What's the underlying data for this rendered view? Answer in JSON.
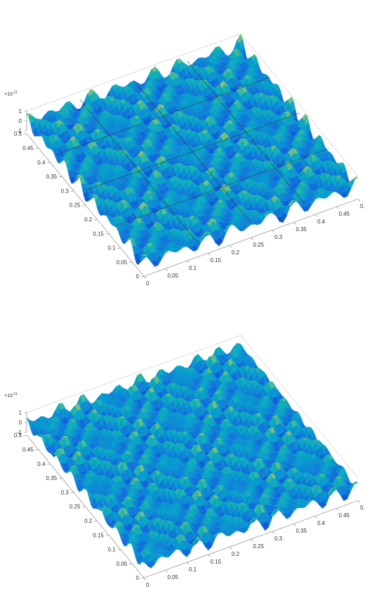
{
  "chart_data": [
    {
      "type": "surface",
      "title": "",
      "xlabel": "",
      "ylabel": "",
      "zlabel": "",
      "x_ticks": [
        "0",
        "0.05",
        "0.1",
        "0.15",
        "0.2",
        "0.25",
        "0.3",
        "0.35",
        "0.4",
        "0.45",
        "0.5"
      ],
      "y_ticks": [
        "0",
        "0.05",
        "0.1",
        "0.15",
        "0.2",
        "0.25",
        "0.3",
        "0.35",
        "0.4",
        "0.45",
        "0.5"
      ],
      "z_ticks": [
        "-1",
        "0",
        "1"
      ],
      "z_exponent": "×10",
      "z_exponent_power": "-11",
      "xlim": [
        0,
        0.5
      ],
      "ylim": [
        0,
        0.5
      ],
      "zlim": [
        -1e-11,
        1e-11
      ],
      "colormap": "parula",
      "overlay_grid_lines": 4,
      "pattern_kx": [
        10,
        9
      ],
      "pattern_phase": 0.0
    },
    {
      "type": "surface",
      "title": "",
      "xlabel": "",
      "ylabel": "",
      "zlabel": "",
      "x_ticks": [
        "0",
        "0.05",
        "0.1",
        "0.15",
        "0.2",
        "0.25",
        "0.3",
        "0.35",
        "0.4",
        "0.45",
        "0.5"
      ],
      "y_ticks": [
        "0",
        "0.05",
        "0.1",
        "0.15",
        "0.2",
        "0.25",
        "0.3",
        "0.35",
        "0.4",
        "0.45",
        "0.5"
      ],
      "z_ticks": [
        "-1",
        "0",
        "1"
      ],
      "z_exponent": "×10",
      "z_exponent_power": "-11",
      "xlim": [
        0,
        0.5
      ],
      "ylim": [
        0,
        0.5
      ],
      "zlim": [
        -1e-11,
        1e-11
      ],
      "colormap": "parula",
      "overlay_grid_lines": 0,
      "pattern_kx": [
        11,
        10
      ],
      "pattern_phase": 1.3
    }
  ]
}
